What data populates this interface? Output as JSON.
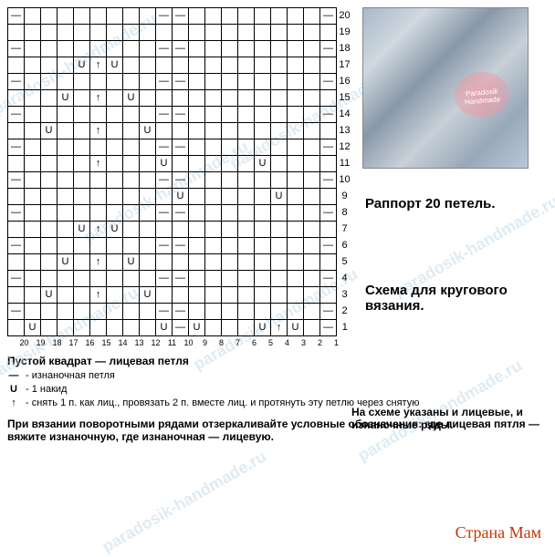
{
  "chart": {
    "cols": 20,
    "rows": 20,
    "col_labels": [
      "20",
      "19",
      "18",
      "17",
      "16",
      "15",
      "14",
      "13",
      "12",
      "11",
      "10",
      "9",
      "8",
      "7",
      "6",
      "5",
      "4",
      "3",
      "2",
      "1"
    ],
    "symbols": {
      "p": "—",
      "yo": "U",
      "a": "↑",
      "b": ""
    },
    "grid": [
      [
        "p",
        "",
        "",
        "",
        "",
        "",
        "",
        "",
        "",
        "p",
        "p",
        "",
        "",
        "",
        "",
        "",
        "",
        "",
        "",
        "p"
      ],
      [
        "",
        "",
        "",
        "",
        "",
        "",
        "",
        "",
        "",
        "",
        "",
        "",
        "",
        "",
        "",
        "",
        "",
        "",
        "",
        ""
      ],
      [
        "p",
        "",
        "",
        "",
        "",
        "",
        "",
        "",
        "",
        "p",
        "p",
        "",
        "",
        "",
        "",
        "",
        "",
        "",
        "",
        "p"
      ],
      [
        "",
        "",
        "",
        "",
        "yo",
        "a",
        "yo",
        "",
        "",
        "",
        "",
        "",
        "",
        "",
        "",
        "",
        "",
        "",
        "",
        ""
      ],
      [
        "p",
        "",
        "",
        "",
        "",
        "",
        "",
        "",
        "",
        "p",
        "p",
        "",
        "",
        "",
        "",
        "",
        "",
        "",
        "",
        "p"
      ],
      [
        "",
        "",
        "",
        "yo",
        "",
        "a",
        "",
        "yo",
        "",
        "",
        "",
        "",
        "",
        "",
        "",
        "",
        "",
        "",
        "",
        ""
      ],
      [
        "p",
        "",
        "",
        "",
        "",
        "",
        "",
        "",
        "",
        "p",
        "p",
        "",
        "",
        "",
        "",
        "",
        "",
        "",
        "",
        "p"
      ],
      [
        "",
        "",
        "yo",
        "",
        "",
        "a",
        "",
        "",
        "yo",
        "",
        "",
        "",
        "",
        "",
        "",
        "",
        "",
        "",
        "",
        ""
      ],
      [
        "p",
        "",
        "",
        "",
        "",
        "",
        "",
        "",
        "",
        "p",
        "p",
        "",
        "",
        "",
        "",
        "",
        "",
        "",
        "",
        "p"
      ],
      [
        "",
        "",
        "",
        "",
        "",
        "a",
        "",
        "",
        "",
        "yo",
        "",
        "",
        "",
        "",
        "",
        "yo",
        "",
        "",
        "",
        ""
      ],
      [
        "p",
        "",
        "",
        "",
        "",
        "",
        "",
        "",
        "",
        "p",
        "p",
        "",
        "",
        "",
        "",
        "",
        "",
        "",
        "",
        "p"
      ],
      [
        "",
        "",
        "",
        "",
        "",
        "",
        "",
        "",
        "",
        "",
        "yo",
        "",
        "",
        "",
        "",
        "",
        "yo",
        "",
        "",
        ""
      ],
      [
        "p",
        "",
        "",
        "",
        "",
        "",
        "",
        "",
        "",
        "p",
        "p",
        "",
        "",
        "",
        "",
        "",
        "",
        "",
        "",
        "p"
      ],
      [
        "",
        "",
        "",
        "",
        "yo",
        "a",
        "yo",
        "",
        "",
        "",
        "",
        "",
        "",
        "",
        "",
        "",
        "",
        "",
        "",
        ""
      ],
      [
        "p",
        "",
        "",
        "",
        "",
        "",
        "",
        "",
        "",
        "p",
        "p",
        "",
        "",
        "",
        "",
        "",
        "",
        "",
        "",
        "p"
      ],
      [
        "",
        "",
        "",
        "yo",
        "",
        "a",
        "",
        "yo",
        "",
        "",
        "",
        "",
        "",
        "",
        "",
        "",
        "",
        "",
        "",
        ""
      ],
      [
        "p",
        "",
        "",
        "",
        "",
        "",
        "",
        "",
        "",
        "p",
        "p",
        "",
        "",
        "",
        "",
        "",
        "",
        "",
        "",
        "p"
      ],
      [
        "",
        "",
        "yo",
        "",
        "",
        "a",
        "",
        "",
        "yo",
        "",
        "",
        "",
        "",
        "",
        "",
        "",
        "",
        "",
        "",
        ""
      ],
      [
        "p",
        "",
        "",
        "",
        "",
        "",
        "",
        "",
        "",
        "p",
        "p",
        "",
        "",
        "",
        "",
        "",
        "",
        "",
        "",
        "p"
      ],
      [
        "",
        "yo",
        "",
        "",
        "",
        "",
        "",
        "",
        "",
        "yo",
        "p",
        "yo",
        "",
        "",
        "",
        "yo",
        "a",
        "yo",
        "",
        "p"
      ]
    ]
  },
  "texts": {
    "rapport": "Раппорт 20 петель.",
    "scheme": "Схема для кругового вязания.",
    "legend_title": "Пустой квадрат — лицевая петля",
    "legend_p": "- изнаночная петля",
    "legend_yo": "- 1 накид",
    "legend_a": "- снять 1 п. как лиц., провязать 2 п. вместе лиц. и протянуть эту петлю через снятую",
    "note_right": "На схеме указаны и лицевые, и изнаночные ряды.",
    "note_bottom": "При вязании поворотными рядами отзеркаливайте условные обозначения: где лицевая пятля — вяжите изнаночную, где изнаночная — лицевую.",
    "brand": "Страна Мам",
    "watermark": "paradosik-handmade.ru",
    "photo_label": "Paradosik Handmade"
  },
  "style": {
    "grid_border": "#000000",
    "bg": "#ffffff",
    "watermark_color": "#b8d4e8",
    "brand_color": "#cc3300",
    "font_legend": 11,
    "font_main": 14
  }
}
